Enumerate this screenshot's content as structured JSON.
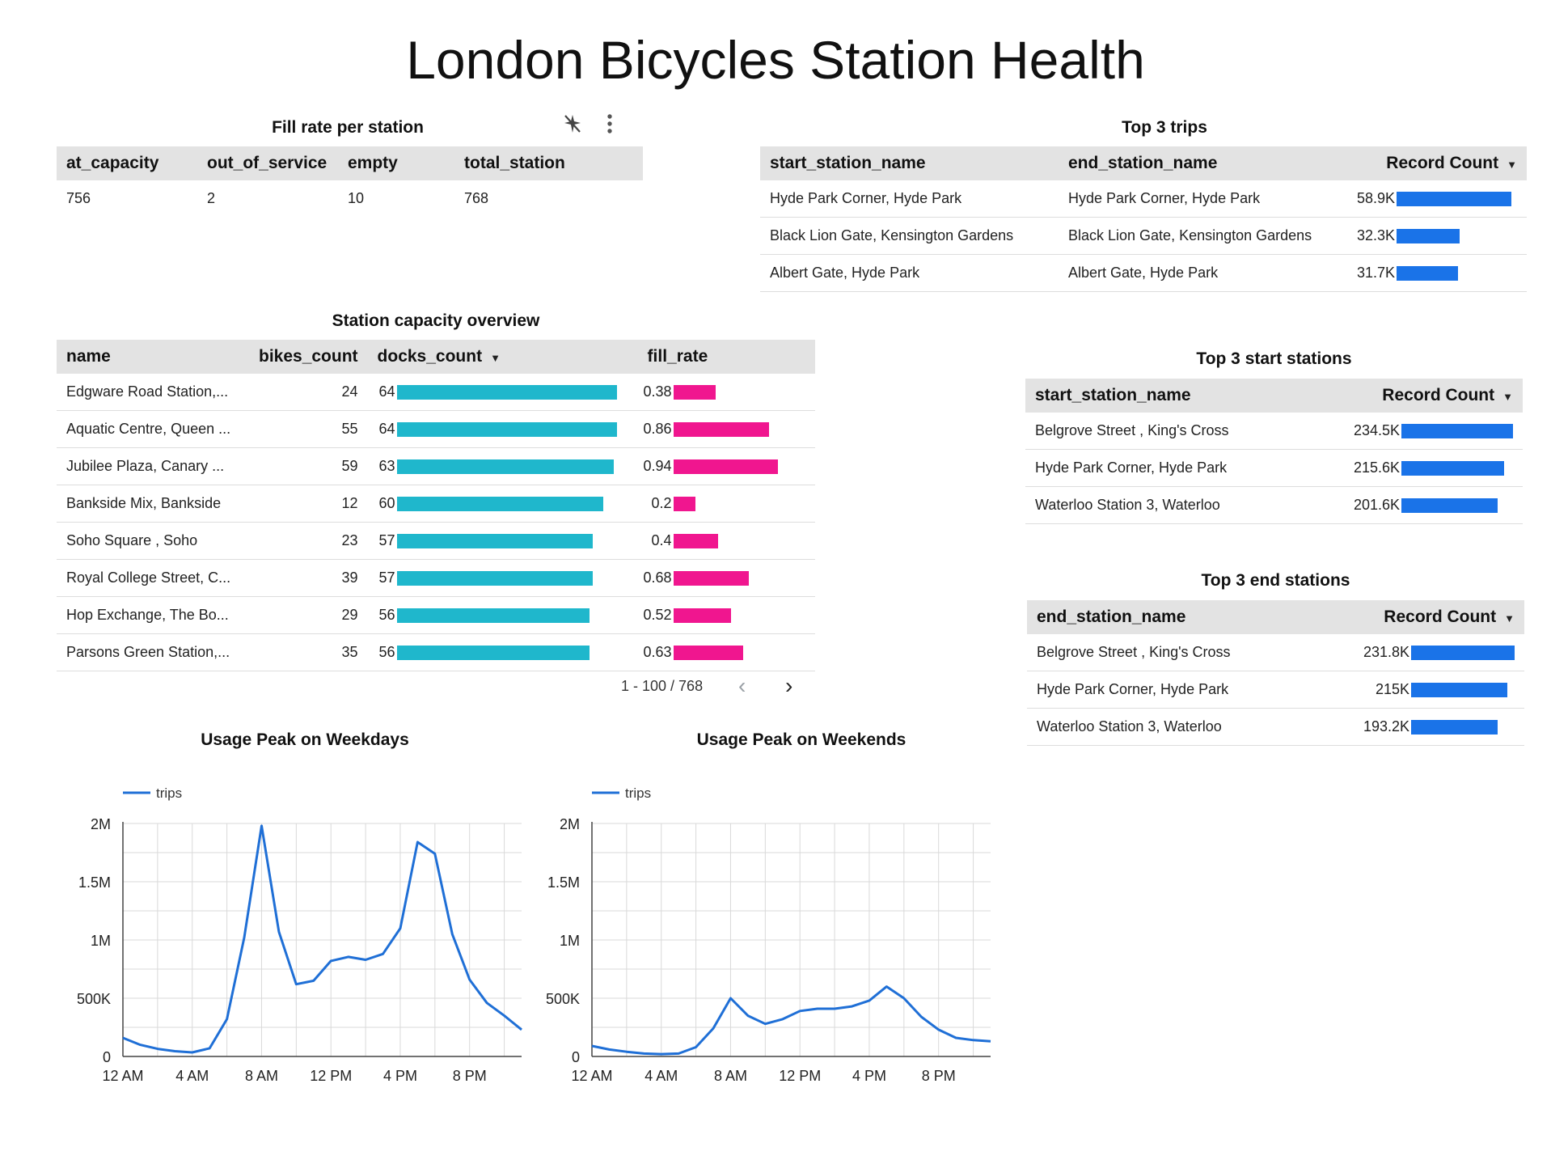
{
  "title": "London Bicycles Station Health",
  "colors": {
    "blue": "#1a73e8",
    "teal": "#1fb7cc",
    "pink": "#f0168f",
    "header_bg": "#e3e3e3",
    "line": "#1f6fd6"
  },
  "fill_rate": {
    "title": "Fill rate per station",
    "icons": [
      "no-filter-icon",
      "more-vert-icon"
    ],
    "columns": [
      "at_capacity",
      "out_of_service",
      "empty",
      "total_station"
    ],
    "rows": [
      [
        "756",
        "2",
        "10",
        "768"
      ]
    ]
  },
  "top_trips": {
    "title": "Top 3 trips",
    "columns": [
      "start_station_name",
      "end_station_name",
      "Record Count"
    ],
    "rows": [
      {
        "start": "Hyde Park Corner, Hyde Park",
        "end": "Hyde Park Corner, Hyde Park",
        "label": "58.9K",
        "value": 58.9
      },
      {
        "start": "Black Lion Gate, Kensington Gardens",
        "end": "Black Lion Gate, Kensington Gardens",
        "label": "32.3K",
        "value": 32.3
      },
      {
        "start": "Albert Gate, Hyde Park",
        "end": "Albert Gate, Hyde Park",
        "label": "31.7K",
        "value": 31.7
      }
    ]
  },
  "capacity": {
    "title": "Station capacity overview",
    "columns": [
      "name",
      "bikes_count",
      "docks_count",
      "fill_rate"
    ],
    "rows": [
      {
        "name": "Edgware Road Station,...",
        "bikes": "24",
        "docks": 64,
        "fill": 0.38,
        "fill_label": "0.38"
      },
      {
        "name": "Aquatic Centre, Queen ...",
        "bikes": "55",
        "docks": 64,
        "fill": 0.86,
        "fill_label": "0.86"
      },
      {
        "name": "Jubilee Plaza, Canary ...",
        "bikes": "59",
        "docks": 63,
        "fill": 0.94,
        "fill_label": "0.94"
      },
      {
        "name": "Bankside Mix, Bankside",
        "bikes": "12",
        "docks": 60,
        "fill": 0.2,
        "fill_label": "0.2"
      },
      {
        "name": "Soho Square , Soho",
        "bikes": "23",
        "docks": 57,
        "fill": 0.4,
        "fill_label": "0.4"
      },
      {
        "name": "Royal College Street, C...",
        "bikes": "39",
        "docks": 57,
        "fill": 0.68,
        "fill_label": "0.68"
      },
      {
        "name": "Hop Exchange, The Bo...",
        "bikes": "29",
        "docks": 56,
        "fill": 0.52,
        "fill_label": "0.52"
      },
      {
        "name": "Parsons Green Station,...",
        "bikes": "35",
        "docks": 56,
        "fill": 0.63,
        "fill_label": "0.63"
      }
    ],
    "pager": "1 - 100 / 768"
  },
  "top_start": {
    "title": "Top 3 start stations",
    "columns": [
      "start_station_name",
      "Record Count"
    ],
    "rows": [
      {
        "name": "Belgrove Street , King's Cross",
        "label": "234.5K",
        "value": 234.5
      },
      {
        "name": "Hyde Park Corner, Hyde Park",
        "label": "215.6K",
        "value": 215.6
      },
      {
        "name": "Waterloo Station 3, Waterloo",
        "label": "201.6K",
        "value": 201.6
      }
    ]
  },
  "top_end": {
    "title": "Top 3 end stations",
    "columns": [
      "end_station_name",
      "Record Count"
    ],
    "rows": [
      {
        "name": "Belgrove Street , King's Cross",
        "label": "231.8K",
        "value": 231.8
      },
      {
        "name": "Hyde Park Corner, Hyde Park",
        "label": "215K",
        "value": 215
      },
      {
        "name": "Waterloo Station 3, Waterloo",
        "label": "193.2K",
        "value": 193.2
      }
    ]
  },
  "chart_data": [
    {
      "type": "line",
      "title": "Usage Peak on Weekdays",
      "x": [
        0,
        1,
        2,
        3,
        4,
        5,
        6,
        7,
        8,
        9,
        10,
        11,
        12,
        13,
        14,
        15,
        16,
        17,
        18,
        19,
        20,
        21,
        22,
        23
      ],
      "xticks": [
        "12 AM",
        "4 AM",
        "8 AM",
        "12 PM",
        "4 PM",
        "8 PM"
      ],
      "xtick_hours": [
        0,
        4,
        8,
        12,
        16,
        20
      ],
      "yticks": [
        "0",
        "500K",
        "1M",
        "1.5M",
        "2M"
      ],
      "ylim": [
        0,
        2000000
      ],
      "legend": "top-left",
      "series": [
        {
          "name": "trips",
          "values": [
            160000,
            100000,
            65000,
            45000,
            35000,
            70000,
            320000,
            1020000,
            1980000,
            1070000,
            620000,
            650000,
            820000,
            855000,
            830000,
            880000,
            1100000,
            1840000,
            1740000,
            1050000,
            660000,
            460000,
            350000,
            230000
          ]
        }
      ]
    },
    {
      "type": "line",
      "title": "Usage Peak on Weekends",
      "x": [
        0,
        1,
        2,
        3,
        4,
        5,
        6,
        7,
        8,
        9,
        10,
        11,
        12,
        13,
        14,
        15,
        16,
        17,
        18,
        19,
        20,
        21,
        22,
        23
      ],
      "xticks": [
        "12 AM",
        "4 AM",
        "8 AM",
        "12 PM",
        "4 PM",
        "8 PM"
      ],
      "xtick_hours": [
        0,
        4,
        8,
        12,
        16,
        20
      ],
      "yticks": [
        "0",
        "500K",
        "1M",
        "1.5M",
        "2M"
      ],
      "ylim": [
        0,
        2000000
      ],
      "legend": "top-left",
      "series": [
        {
          "name": "trips",
          "values": [
            90000,
            60000,
            40000,
            25000,
            20000,
            25000,
            80000,
            240000,
            500000,
            350000,
            280000,
            320000,
            390000,
            410000,
            410000,
            430000,
            480000,
            600000,
            500000,
            340000,
            230000,
            160000,
            140000,
            130000
          ]
        }
      ]
    }
  ]
}
